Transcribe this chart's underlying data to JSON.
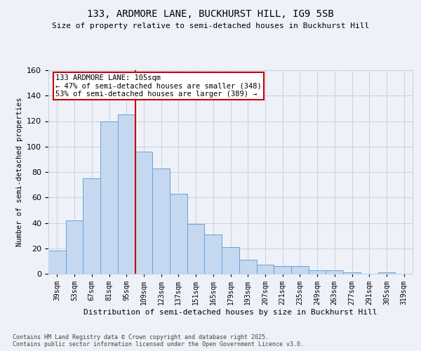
{
  "title1": "133, ARDMORE LANE, BUCKHURST HILL, IG9 5SB",
  "title2": "Size of property relative to semi-detached houses in Buckhurst Hill",
  "xlabel": "Distribution of semi-detached houses by size in Buckhurst Hill",
  "ylabel": "Number of semi-detached properties",
  "footer": "Contains HM Land Registry data © Crown copyright and database right 2025.\nContains public sector information licensed under the Open Government Licence v3.0.",
  "categories": [
    "39sqm",
    "53sqm",
    "67sqm",
    "81sqm",
    "95sqm",
    "109sqm",
    "123sqm",
    "137sqm",
    "151sqm",
    "165sqm",
    "179sqm",
    "193sqm",
    "207sqm",
    "221sqm",
    "235sqm",
    "249sqm",
    "263sqm",
    "277sqm",
    "291sqm",
    "305sqm",
    "319sqm"
  ],
  "values": [
    18,
    42,
    75,
    120,
    125,
    96,
    83,
    63,
    39,
    31,
    21,
    11,
    7,
    6,
    6,
    3,
    3,
    1,
    0,
    1,
    0
  ],
  "bar_color": "#c5d8f0",
  "bar_edge_color": "#6a9fd8",
  "grid_color": "#c8d4e8",
  "background_color": "#eef2f8",
  "vline_x_index": 4.5,
  "vline_color": "#cc0000",
  "annotation_text": "133 ARDMORE LANE: 105sqm\n← 47% of semi-detached houses are smaller (348)\n53% of semi-detached houses are larger (389) →",
  "annotation_box_color": "#cc0000",
  "ylim": [
    0,
    160
  ],
  "yticks": [
    0,
    20,
    40,
    60,
    80,
    100,
    120,
    140,
    160
  ]
}
